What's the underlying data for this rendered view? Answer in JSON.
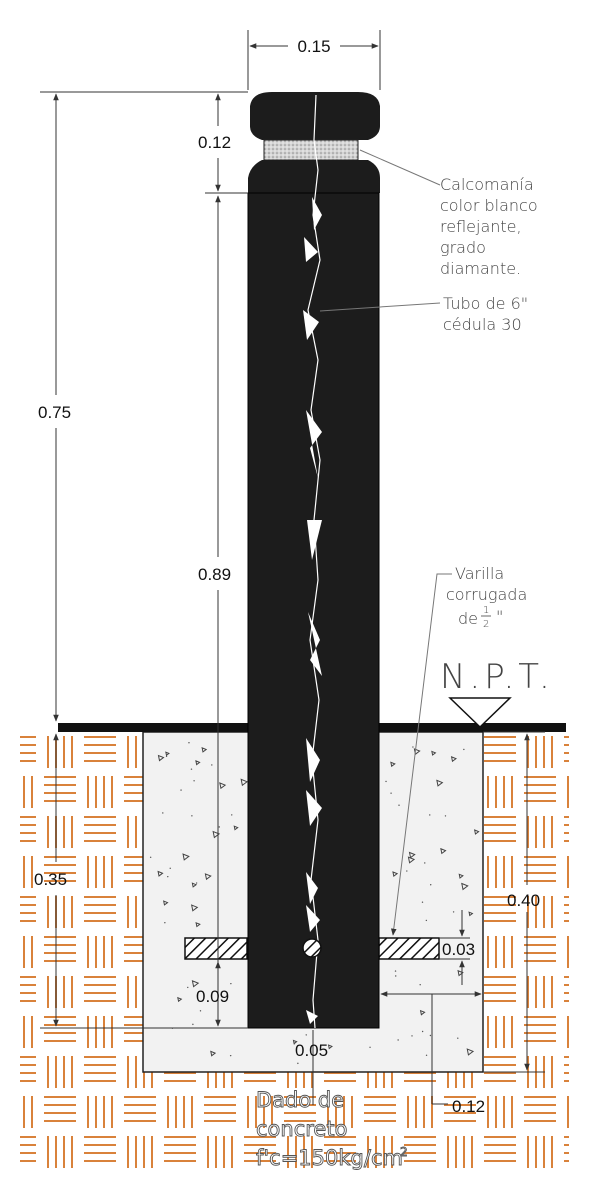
{
  "dimensions": {
    "top_width": "0.15",
    "cap_height": "0.12",
    "total_above": "0.75",
    "tube_length": "0.89",
    "embed_depth": "0.35",
    "dado_depth": "0.40",
    "rebar_offset": "0.03",
    "rebar_to_bottom": "0.09",
    "bottom_cover": "0.05",
    "side_cover": "0.12"
  },
  "labels": {
    "sticker": [
      "Calcomanía",
      "color blanco",
      "reflejante,",
      "grado",
      "diamante."
    ],
    "tube": [
      "Tubo de 6\"",
      "cédula 30"
    ],
    "rebar_line1": "Varilla",
    "rebar_line2": "corrugada",
    "rebar_line3_prefix": "de",
    "rebar_fraction_num": "1",
    "rebar_fraction_den": "2",
    "rebar_line3_suffix": "\"",
    "npt": "N.P.T.",
    "dado": [
      "Dado  de",
      "concreto"
    ],
    "dado_spec": "f'c=150kg/cm",
    "dado_spec_sup": "2"
  },
  "colors": {
    "post": "#1c1c1c",
    "soil": "#d9823b",
    "concrete": "#f2f2f2",
    "band": "#cfcfcf"
  }
}
